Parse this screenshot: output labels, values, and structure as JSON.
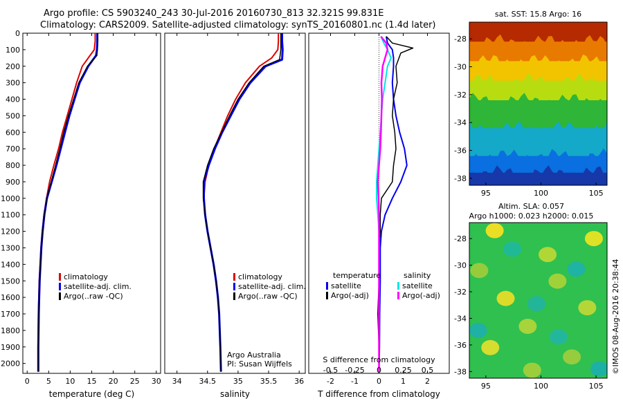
{
  "title": {
    "line1": "Argo profile: CS 5903240_243 30-Jul-2016 20160730_813 32.321S 99.831E",
    "line2": "Climatology: CARS2009. Satellite-adjusted climatology: synTS_20160801.nc (1.4d later)"
  },
  "colors": {
    "climatology": "#dd0000",
    "satellite_adj": "#0000ee",
    "argo": "#000000",
    "salinity_satellite": "#00e5e5",
    "salinity_argo": "#ff00ff"
  },
  "chart_data": [
    {
      "type": "line",
      "id": "temperature",
      "xlabel": "temperature (deg C)",
      "ylabel": "",
      "xlim": [
        -1,
        31
      ],
      "ylim": [
        2060,
        0
      ],
      "xticks": [
        0,
        5,
        10,
        15,
        20,
        25,
        30
      ],
      "yticks": [
        0,
        100,
        200,
        300,
        400,
        500,
        600,
        700,
        800,
        900,
        1000,
        1100,
        1200,
        1300,
        1400,
        1500,
        1600,
        1700,
        1800,
        1900,
        2000
      ],
      "legend": {
        "position": "lower-middle",
        "entries": [
          {
            "label": "climatology",
            "color": "#dd0000"
          },
          {
            "label": "satellite-adj. clim.",
            "color": "#0000ee"
          },
          {
            "label": "Argo(..raw -QC)",
            "color": "#000000"
          }
        ]
      },
      "series": [
        {
          "name": "climatology",
          "color": "#dd0000",
          "width": 2,
          "x": [
            15.8,
            15.8,
            15.6,
            14.2,
            12.8,
            11.5,
            10.4,
            9.3,
            8.2,
            7.3,
            6.2,
            5.2,
            4.5,
            3.9,
            3.5,
            3.2,
            3.0,
            2.8,
            2.7,
            2.6,
            2.5,
            2.5
          ],
          "y": [
            0,
            50,
            100,
            150,
            200,
            300,
            400,
            500,
            600,
            700,
            800,
            900,
            1000,
            1100,
            1200,
            1300,
            1400,
            1500,
            1600,
            1700,
            1900,
            2050
          ]
        },
        {
          "name": "satellite-adj. clim.",
          "color": "#0000ee",
          "width": 3,
          "x": [
            16.3,
            16.3,
            16.2,
            16.0,
            14.2,
            12.2,
            11.0,
            9.8,
            8.8,
            7.8,
            6.8,
            5.7,
            4.6,
            4.0,
            3.6,
            3.3,
            3.1,
            2.9,
            2.8,
            2.7,
            2.6,
            2.6
          ],
          "y": [
            0,
            50,
            100,
            135,
            200,
            300,
            400,
            500,
            600,
            700,
            800,
            900,
            1000,
            1100,
            1200,
            1300,
            1400,
            1500,
            1600,
            1700,
            1900,
            2050
          ]
        },
        {
          "name": "Argo(..raw -QC)",
          "color": "#000000",
          "width": 1.5,
          "x": [
            16.4,
            16.4,
            16.3,
            16.2,
            14.0,
            12.0,
            10.8,
            9.6,
            8.5,
            7.6,
            6.6,
            5.6,
            4.6,
            4.0,
            3.6,
            3.3,
            3.1,
            2.9,
            2.8,
            2.7,
            2.6,
            2.6
          ],
          "y": [
            0,
            50,
            100,
            135,
            200,
            300,
            400,
            500,
            600,
            700,
            800,
            900,
            1000,
            1100,
            1200,
            1300,
            1400,
            1500,
            1600,
            1700,
            1900,
            2050
          ]
        }
      ]
    },
    {
      "type": "line",
      "id": "salinity",
      "xlabel": "salinity",
      "ylabel": "",
      "xlim": [
        33.8,
        36.1
      ],
      "ylim": [
        2060,
        0
      ],
      "xticks": [
        34,
        34.5,
        35,
        35.5,
        36
      ],
      "yticks": [],
      "legend": {
        "position": "lower-right",
        "entries": [
          {
            "label": "climatology",
            "color": "#dd0000"
          },
          {
            "label": "satellite-adj. clim.",
            "color": "#0000ee"
          },
          {
            "label": "Argo(..raw -QC)",
            "color": "#000000"
          }
        ]
      },
      "annotations": [
        "Argo Australia",
        "PI: Susan Wijffels"
      ],
      "series": [
        {
          "name": "climatology",
          "color": "#dd0000",
          "width": 2,
          "x": [
            35.66,
            35.66,
            35.65,
            35.55,
            35.35,
            35.12,
            34.96,
            34.83,
            34.72,
            34.61,
            34.52,
            34.46,
            34.44,
            34.46,
            34.5,
            34.55,
            34.6,
            34.64,
            34.67,
            34.69,
            34.71,
            34.72
          ],
          "y": [
            0,
            50,
            100,
            150,
            200,
            300,
            400,
            500,
            600,
            700,
            800,
            900,
            1000,
            1100,
            1200,
            1300,
            1400,
            1500,
            1600,
            1700,
            1900,
            2050
          ]
        },
        {
          "name": "satellite-adj. clim.",
          "color": "#0000ee",
          "width": 3,
          "x": [
            35.72,
            35.72,
            35.73,
            35.72,
            35.45,
            35.2,
            35.02,
            34.88,
            34.74,
            34.62,
            34.52,
            34.44,
            34.44,
            34.46,
            34.5,
            34.55,
            34.6,
            34.64,
            34.67,
            34.69,
            34.71,
            34.72
          ],
          "y": [
            0,
            50,
            100,
            160,
            200,
            300,
            400,
            500,
            600,
            700,
            800,
            900,
            1000,
            1100,
            1200,
            1300,
            1400,
            1500,
            1600,
            1700,
            1900,
            2050
          ]
        },
        {
          "name": "Argo(..raw -QC)",
          "color": "#000000",
          "width": 1.5,
          "x": [
            35.7,
            35.7,
            35.7,
            35.68,
            35.42,
            35.18,
            35.0,
            34.86,
            34.73,
            34.6,
            34.5,
            34.43,
            34.43,
            34.46,
            34.5,
            34.55,
            34.6,
            34.64,
            34.67,
            34.69,
            34.71,
            34.72
          ],
          "y": [
            0,
            50,
            100,
            160,
            200,
            300,
            400,
            500,
            600,
            700,
            800,
            900,
            1000,
            1100,
            1200,
            1300,
            1400,
            1500,
            1600,
            1700,
            1900,
            2050
          ]
        }
      ]
    },
    {
      "type": "line",
      "id": "difference",
      "xlabel": "T difference from climatology",
      "secondary_xlabel": "S difference from climatology",
      "xlim": [
        -2.9,
        2.9
      ],
      "ylim": [
        2060,
        0
      ],
      "xticks": [
        -2,
        -1,
        0,
        1,
        2
      ],
      "secondary_xticks": [
        "-0.5",
        "-0.25",
        "0",
        "0.25",
        "0.5"
      ],
      "zero_line": "dotted",
      "legend": {
        "position": "lower-middle",
        "groups": [
          {
            "heading": "temperature",
            "entries": [
              {
                "label": "satellite",
                "color": "#0000ee"
              },
              {
                "label": "Argo(-adj)",
                "color": "#000000"
              }
            ]
          },
          {
            "heading": "salinity",
            "entries": [
              {
                "label": "satellite",
                "color": "#00e5e5"
              },
              {
                "label": "Argo(-adj)",
                "color": "#ff00ff"
              }
            ]
          }
        ]
      },
      "series": [
        {
          "name": "temperature satellite",
          "color": "#0000ee",
          "width": 2,
          "x": [
            0.3,
            0.35,
            0.55,
            0.6,
            0.6,
            0.55,
            0.6,
            0.7,
            0.85,
            1.05,
            1.15,
            0.9,
            0.55,
            0.25,
            0.1,
            0.05,
            0.05,
            0.03,
            0.02,
            0.0
          ],
          "y": [
            20,
            60,
            100,
            150,
            200,
            300,
            400,
            500,
            600,
            700,
            800,
            900,
            1000,
            1100,
            1200,
            1300,
            1500,
            1700,
            1900,
            2050
          ]
        },
        {
          "name": "temperature Argo(-adj)",
          "color": "#000000",
          "width": 1.5,
          "x": [
            0.3,
            0.55,
            1.4,
            0.9,
            0.7,
            0.75,
            0.6,
            0.55,
            0.65,
            0.7,
            0.6,
            0.55,
            0.1,
            0.05,
            0.05,
            0.0,
            0.0,
            -0.05,
            0.0,
            0.0
          ],
          "y": [
            20,
            60,
            90,
            120,
            200,
            300,
            400,
            500,
            600,
            700,
            800,
            900,
            1000,
            1100,
            1200,
            1300,
            1500,
            1700,
            1900,
            2050
          ]
        },
        {
          "name": "salinity satellite",
          "color": "#00e5e5",
          "width": 2,
          "x": [
            0.08,
            0.2,
            0.35,
            0.5,
            0.35,
            0.25,
            0.15,
            0.1,
            0.05,
            0.0,
            -0.05,
            -0.1,
            -0.1,
            -0.05,
            0.0,
            0.0,
            0.0,
            0.0,
            0.0,
            0.0
          ],
          "y": [
            20,
            60,
            100,
            150,
            200,
            300,
            400,
            500,
            600,
            700,
            800,
            900,
            1000,
            1100,
            1200,
            1300,
            1500,
            1700,
            1900,
            2050
          ]
        },
        {
          "name": "salinity Argo(-adj)",
          "color": "#ff00ff",
          "width": 2.5,
          "x": [
            0.08,
            0.3,
            0.35,
            0.25,
            0.15,
            0.1,
            0.12,
            0.1,
            0.08,
            0.05,
            0.0,
            -0.05,
            -0.02,
            0.0,
            0.0,
            0.0,
            0.0,
            0.0,
            0.0,
            0.0
          ],
          "y": [
            20,
            60,
            100,
            150,
            200,
            300,
            400,
            500,
            600,
            700,
            800,
            900,
            1000,
            1100,
            1200,
            1300,
            1500,
            1700,
            1900,
            2050
          ]
        }
      ]
    },
    {
      "type": "heatmap",
      "id": "sst_map",
      "title": "sat. SST: 15.8 Argo: 16",
      "xlim": [
        93.5,
        106
      ],
      "ylim": [
        -38.5,
        -26.8
      ],
      "xticks": [
        95,
        100,
        105
      ],
      "yticks": [
        -28,
        -30,
        -32,
        -34,
        -36,
        -38
      ],
      "colormap": "jet",
      "bands": [
        {
          "lat_from": -26.8,
          "lat_to": -28.2,
          "color": "#b52a00"
        },
        {
          "lat_from": -28.2,
          "lat_to": -29.6,
          "color": "#e87a00"
        },
        {
          "lat_from": -29.6,
          "lat_to": -31.0,
          "color": "#f2c400"
        },
        {
          "lat_from": -31.0,
          "lat_to": -32.4,
          "color": "#b7dd10"
        },
        {
          "lat_from": -32.4,
          "lat_to": -34.4,
          "color": "#2fb538"
        },
        {
          "lat_from": -34.4,
          "lat_to": -36.4,
          "color": "#14a9c8"
        },
        {
          "lat_from": -36.4,
          "lat_to": -37.6,
          "color": "#0a6fe0"
        },
        {
          "lat_from": -37.6,
          "lat_to": -38.5,
          "color": "#1638a8"
        }
      ]
    },
    {
      "type": "heatmap",
      "id": "sla_map",
      "title_line1": "Altim. SLA: 0.057",
      "title_line2": "Argo h1000: 0.023 h2000: 0.015",
      "xlim": [
        93.5,
        106
      ],
      "ylim": [
        -38.5,
        -26.8
      ],
      "xticks": [
        95,
        100,
        105
      ],
      "yticks": [
        -28,
        -30,
        -32,
        -34,
        -36,
        -38
      ],
      "colormap": "jet",
      "background": "#2fc050",
      "blobs": [
        {
          "lon": 95.8,
          "lat": -27.4,
          "value": "high",
          "color": "#f4e022"
        },
        {
          "lon": 104.8,
          "lat": -28.0,
          "value": "high",
          "color": "#e8e422"
        },
        {
          "lon": 100.6,
          "lat": -29.2,
          "value": "mid",
          "color": "#b8d836"
        },
        {
          "lon": 94.4,
          "lat": -30.4,
          "value": "mid",
          "color": "#9ccc3a"
        },
        {
          "lon": 101.5,
          "lat": -31.2,
          "value": "mid",
          "color": "#a6d238"
        },
        {
          "lon": 96.8,
          "lat": -32.5,
          "value": "high",
          "color": "#e6dc28"
        },
        {
          "lon": 104.2,
          "lat": -33.2,
          "value": "mid",
          "color": "#bcd836"
        },
        {
          "lon": 98.8,
          "lat": -34.6,
          "value": "mid",
          "color": "#aed43a"
        },
        {
          "lon": 95.4,
          "lat": -36.2,
          "value": "high",
          "color": "#dede2c"
        },
        {
          "lon": 102.8,
          "lat": -36.9,
          "value": "mid",
          "color": "#9ccc3c"
        },
        {
          "lon": 99.2,
          "lat": -37.9,
          "value": "mid",
          "color": "#a2cf3a"
        },
        {
          "lon": 97.4,
          "lat": -28.8,
          "value": "low",
          "color": "#20b89a"
        },
        {
          "lon": 103.2,
          "lat": -30.3,
          "value": "low",
          "color": "#1db2a6"
        },
        {
          "lon": 99.6,
          "lat": -32.9,
          "value": "low",
          "color": "#22b49c"
        },
        {
          "lon": 94.3,
          "lat": -34.9,
          "value": "low",
          "color": "#1fb0a8"
        },
        {
          "lon": 101.6,
          "lat": -35.4,
          "value": "low",
          "color": "#22b6a0"
        },
        {
          "lon": 105.3,
          "lat": -37.8,
          "value": "low",
          "color": "#1cb0aa"
        }
      ]
    }
  ],
  "footer": {
    "stamp": "©IMOS 08-Aug-2016 20:38:44"
  }
}
